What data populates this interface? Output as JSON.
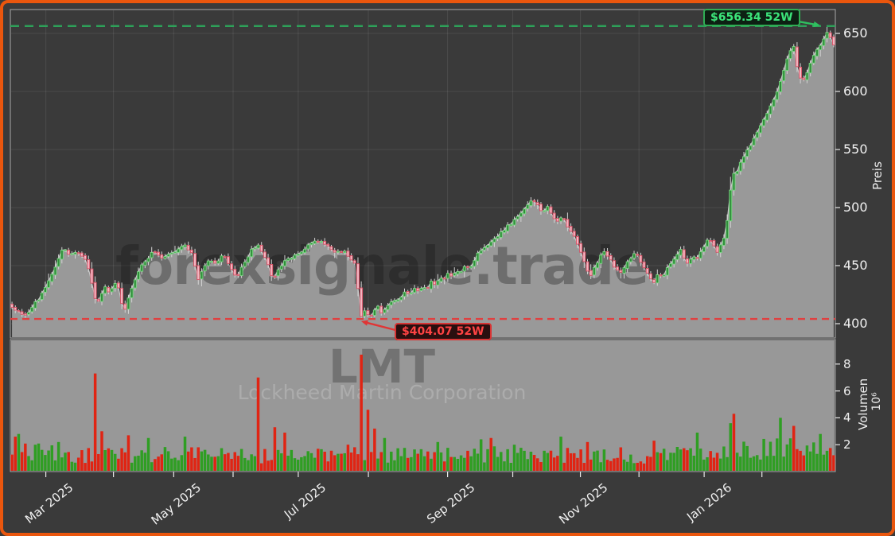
{
  "chart_data": {
    "type": "candlestick",
    "ticker": "LMT",
    "company": "Lockheed Martin Corporation",
    "brand_watermark": "forexsignale.trade",
    "annotations": {
      "high_52w": {
        "label": "$656.34 52W",
        "value": 656.34
      },
      "low_52w": {
        "label": "$404.07 52W",
        "value": 404.07
      }
    },
    "price_axis": {
      "label": "Preis",
      "ticks": [
        400,
        450,
        500,
        550,
        600,
        650
      ]
    },
    "volume_axis": {
      "label": "Volumen",
      "unit_label": "10⁶",
      "ticks": [
        2,
        4,
        6,
        8
      ]
    },
    "x_axis": {
      "major_ticks": [
        {
          "label": "Mar 2025",
          "t": 0.043
        },
        {
          "label": "May 2025",
          "t": 0.198
        },
        {
          "label": "Jul 2025",
          "t": 0.349
        },
        {
          "label": "Sep 2025",
          "t": 0.53
        },
        {
          "label": "Nov 2025",
          "t": 0.691
        },
        {
          "label": "Jan 2026",
          "t": 0.841
        }
      ],
      "minor_tick_ts": [
        0.125,
        0.27,
        0.434,
        0.609,
        0.762,
        0.911
      ]
    },
    "num_candles": 248,
    "close_anchors": [
      [
        0.0,
        414
      ],
      [
        0.008,
        410
      ],
      [
        0.017,
        407
      ],
      [
        0.025,
        415
      ],
      [
        0.033,
        422
      ],
      [
        0.042,
        432
      ],
      [
        0.052,
        448
      ],
      [
        0.059,
        460
      ],
      [
        0.063,
        466
      ],
      [
        0.07,
        458
      ],
      [
        0.078,
        463
      ],
      [
        0.085,
        458
      ],
      [
        0.092,
        452
      ],
      [
        0.096,
        438
      ],
      [
        0.1,
        424
      ],
      [
        0.104,
        418
      ],
      [
        0.108,
        425
      ],
      [
        0.113,
        431
      ],
      [
        0.118,
        427
      ],
      [
        0.123,
        432
      ],
      [
        0.128,
        436
      ],
      [
        0.132,
        424
      ],
      [
        0.136,
        408
      ],
      [
        0.141,
        420
      ],
      [
        0.147,
        434
      ],
      [
        0.153,
        444
      ],
      [
        0.16,
        452
      ],
      [
        0.166,
        457
      ],
      [
        0.171,
        462
      ],
      [
        0.183,
        456
      ],
      [
        0.197,
        462
      ],
      [
        0.209,
        468
      ],
      [
        0.219,
        460
      ],
      [
        0.223,
        448
      ],
      [
        0.227,
        437
      ],
      [
        0.232,
        447
      ],
      [
        0.238,
        455
      ],
      [
        0.248,
        452
      ],
      [
        0.258,
        460
      ],
      [
        0.267,
        446
      ],
      [
        0.271,
        441
      ],
      [
        0.274,
        440
      ],
      [
        0.278,
        447
      ],
      [
        0.283,
        453
      ],
      [
        0.293,
        465
      ],
      [
        0.299,
        468
      ],
      [
        0.306,
        461
      ],
      [
        0.313,
        448
      ],
      [
        0.318,
        435
      ],
      [
        0.321,
        444
      ],
      [
        0.325,
        448
      ],
      [
        0.332,
        454
      ],
      [
        0.341,
        457
      ],
      [
        0.351,
        461
      ],
      [
        0.357,
        465
      ],
      [
        0.366,
        470
      ],
      [
        0.376,
        472
      ],
      [
        0.386,
        466
      ],
      [
        0.395,
        461
      ],
      [
        0.405,
        463
      ],
      [
        0.412,
        456
      ],
      [
        0.417,
        452
      ],
      [
        0.421,
        430
      ],
      [
        0.425,
        405
      ],
      [
        0.429,
        412
      ],
      [
        0.433,
        408
      ],
      [
        0.437,
        405
      ],
      [
        0.441,
        412
      ],
      [
        0.446,
        416
      ],
      [
        0.45,
        407
      ],
      [
        0.455,
        413
      ],
      [
        0.459,
        418
      ],
      [
        0.464,
        421
      ],
      [
        0.469,
        419
      ],
      [
        0.474,
        424
      ],
      [
        0.479,
        427
      ],
      [
        0.484,
        425
      ],
      [
        0.489,
        430
      ],
      [
        0.494,
        428
      ],
      [
        0.5,
        433
      ],
      [
        0.505,
        430
      ],
      [
        0.51,
        436
      ],
      [
        0.515,
        434
      ],
      [
        0.52,
        440
      ],
      [
        0.525,
        437
      ],
      [
        0.53,
        443
      ],
      [
        0.535,
        441
      ],
      [
        0.54,
        446
      ],
      [
        0.545,
        444
      ],
      [
        0.55,
        450
      ],
      [
        0.557,
        447
      ],
      [
        0.566,
        460
      ],
      [
        0.574,
        465
      ],
      [
        0.581,
        469
      ],
      [
        0.592,
        476
      ],
      [
        0.6,
        482
      ],
      [
        0.61,
        488
      ],
      [
        0.62,
        496
      ],
      [
        0.628,
        502
      ],
      [
        0.634,
        507
      ],
      [
        0.64,
        501
      ],
      [
        0.646,
        496
      ],
      [
        0.652,
        500
      ],
      [
        0.658,
        493
      ],
      [
        0.664,
        488
      ],
      [
        0.67,
        492
      ],
      [
        0.676,
        484
      ],
      [
        0.682,
        477
      ],
      [
        0.688,
        470
      ],
      [
        0.694,
        458
      ],
      [
        0.699,
        448
      ],
      [
        0.704,
        442
      ],
      [
        0.709,
        448
      ],
      [
        0.714,
        455
      ],
      [
        0.72,
        463
      ],
      [
        0.727,
        456
      ],
      [
        0.733,
        449
      ],
      [
        0.74,
        444
      ],
      [
        0.746,
        450
      ],
      [
        0.752,
        456
      ],
      [
        0.758,
        462
      ],
      [
        0.764,
        455
      ],
      [
        0.77,
        447
      ],
      [
        0.776,
        441
      ],
      [
        0.781,
        435
      ],
      [
        0.786,
        443
      ],
      [
        0.791,
        439
      ],
      [
        0.796,
        446
      ],
      [
        0.801,
        452
      ],
      [
        0.807,
        458
      ],
      [
        0.813,
        464
      ],
      [
        0.818,
        457
      ],
      [
        0.823,
        452
      ],
      [
        0.828,
        460
      ],
      [
        0.833,
        455
      ],
      [
        0.838,
        462
      ],
      [
        0.843,
        468
      ],
      [
        0.848,
        473
      ],
      [
        0.853,
        468
      ],
      [
        0.858,
        462
      ],
      [
        0.864,
        470
      ],
      [
        0.869,
        478
      ],
      [
        0.873,
        505
      ],
      [
        0.877,
        532
      ],
      [
        0.881,
        528
      ],
      [
        0.886,
        538
      ],
      [
        0.891,
        545
      ],
      [
        0.897,
        552
      ],
      [
        0.902,
        558
      ],
      [
        0.907,
        565
      ],
      [
        0.912,
        572
      ],
      [
        0.917,
        578
      ],
      [
        0.921,
        585
      ],
      [
        0.926,
        592
      ],
      [
        0.931,
        600
      ],
      [
        0.936,
        610
      ],
      [
        0.941,
        622
      ],
      [
        0.946,
        634
      ],
      [
        0.951,
        641
      ],
      [
        0.957,
        616
      ],
      [
        0.962,
        607
      ],
      [
        0.967,
        615
      ],
      [
        0.972,
        625
      ],
      [
        0.977,
        633
      ],
      [
        0.982,
        638
      ],
      [
        0.987,
        645
      ],
      [
        0.993,
        652
      ],
      [
        1.0,
        641
      ]
    ],
    "volume_base_anchors": [
      [
        0.0,
        1.7
      ],
      [
        0.06,
        1.3
      ],
      [
        0.12,
        1.2
      ],
      [
        0.2,
        1.3
      ],
      [
        0.28,
        1.2
      ],
      [
        0.35,
        1.1
      ],
      [
        0.42,
        1.4
      ],
      [
        0.5,
        1.2
      ],
      [
        0.58,
        1.3
      ],
      [
        0.65,
        1.2
      ],
      [
        0.72,
        1.3
      ],
      [
        0.78,
        1.1
      ],
      [
        0.85,
        1.4
      ],
      [
        0.9,
        1.6
      ],
      [
        0.95,
        1.8
      ],
      [
        1.0,
        1.5
      ]
    ],
    "volume_spikes": [
      {
        "t": 0.003,
        "v": 2.6,
        "dir": "down"
      },
      {
        "t": 0.01,
        "v": 2.8,
        "dir": "up"
      },
      {
        "t": 0.03,
        "v": 2.0,
        "dir": "up"
      },
      {
        "t": 0.055,
        "v": 2.2,
        "dir": "up"
      },
      {
        "t": 0.1,
        "v": 7.3,
        "dir": "down"
      },
      {
        "t": 0.108,
        "v": 3.0,
        "dir": "down"
      },
      {
        "t": 0.14,
        "v": 2.7,
        "dir": "down"
      },
      {
        "t": 0.165,
        "v": 2.5,
        "dir": "up"
      },
      {
        "t": 0.21,
        "v": 2.6,
        "dir": "up"
      },
      {
        "t": 0.3,
        "v": 7.0,
        "dir": "down"
      },
      {
        "t": 0.318,
        "v": 3.3,
        "dir": "down"
      },
      {
        "t": 0.332,
        "v": 2.9,
        "dir": "down"
      },
      {
        "t": 0.425,
        "v": 8.7,
        "dir": "down"
      },
      {
        "t": 0.432,
        "v": 4.6,
        "dir": "down"
      },
      {
        "t": 0.44,
        "v": 3.2,
        "dir": "down"
      },
      {
        "t": 0.452,
        "v": 2.5,
        "dir": "up"
      },
      {
        "t": 0.52,
        "v": 2.2,
        "dir": "up"
      },
      {
        "t": 0.57,
        "v": 2.4,
        "dir": "up"
      },
      {
        "t": 0.585,
        "v": 2.5,
        "dir": "down"
      },
      {
        "t": 0.61,
        "v": 2.0,
        "dir": "up"
      },
      {
        "t": 0.67,
        "v": 2.6,
        "dir": "up"
      },
      {
        "t": 0.7,
        "v": 2.2,
        "dir": "down"
      },
      {
        "t": 0.78,
        "v": 2.3,
        "dir": "down"
      },
      {
        "t": 0.834,
        "v": 2.9,
        "dir": "up"
      },
      {
        "t": 0.873,
        "v": 3.6,
        "dir": "up"
      },
      {
        "t": 0.878,
        "v": 4.3,
        "dir": "down"
      },
      {
        "t": 0.935,
        "v": 4.0,
        "dir": "up"
      },
      {
        "t": 0.95,
        "v": 3.4,
        "dir": "down"
      },
      {
        "t": 0.985,
        "v": 2.8,
        "dir": "up"
      }
    ],
    "colors": {
      "frame_border": "#ea560d",
      "background": "#3a3a3a",
      "area_fill": "#999999",
      "close_line": "#c6c6c6",
      "volume_panel_fill": "#989898",
      "grid": "rgba(255,255,255,0.09)",
      "spine": "#a8a8a8",
      "tick_mark": "#e8e8e8",
      "candle_up_fill": "#2f8f3a",
      "candle_up_edge": "#7cd584",
      "candle_down_fill": "#f4b6c2",
      "candle_down_edge": "#d64f63",
      "wick": "#d4d4d4",
      "volume_up": "#2f9e23",
      "volume_down": "#e02413",
      "high_line": "#2da159",
      "low_line": "#e04040"
    }
  }
}
